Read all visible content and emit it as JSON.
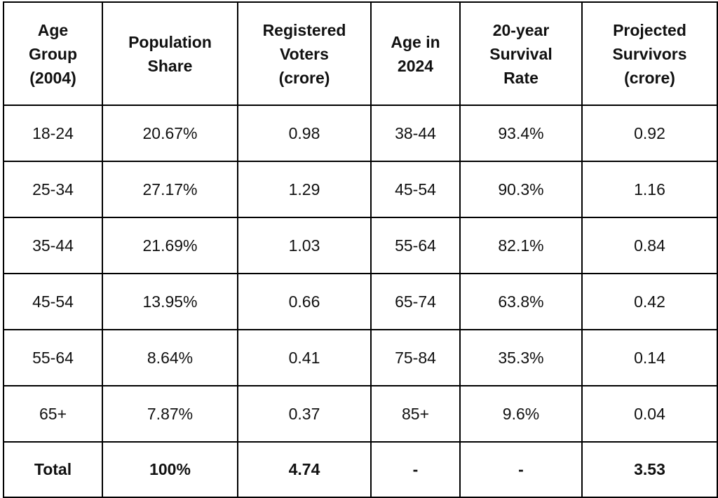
{
  "table": {
    "headers": [
      [
        "Age",
        "Group",
        "(2004)"
      ],
      [
        "Population",
        "Share"
      ],
      [
        "Registered",
        "Voters",
        "(crore)"
      ],
      [
        "Age in",
        "2024"
      ],
      [
        "20-year",
        "Survival",
        "Rate"
      ],
      [
        "Projected",
        "Survivors",
        "(crore)"
      ]
    ],
    "rows": [
      [
        "18-24",
        "20.67%",
        "0.98",
        "38-44",
        "93.4%",
        "0.92"
      ],
      [
        "25-34",
        "27.17%",
        "1.29",
        "45-54",
        "90.3%",
        "1.16"
      ],
      [
        "35-44",
        "21.69%",
        "1.03",
        "55-64",
        "82.1%",
        "0.84"
      ],
      [
        "45-54",
        "13.95%",
        "0.66",
        "65-74",
        "63.8%",
        "0.42"
      ],
      [
        "55-64",
        "8.64%",
        "0.41",
        "75-84",
        "35.3%",
        "0.14"
      ],
      [
        "65+",
        "7.87%",
        "0.37",
        "85+",
        "9.6%",
        "0.04"
      ]
    ],
    "total": [
      "Total",
      "100%",
      "4.74",
      "-",
      "-",
      "3.53"
    ]
  },
  "chart_data": {
    "type": "table",
    "columns": [
      "Age Group (2004)",
      "Population Share",
      "Registered Voters (crore)",
      "Age in 2024",
      "20-year Survival Rate",
      "Projected Survivors (crore)"
    ],
    "rows": [
      [
        "18-24",
        "20.67%",
        0.98,
        "38-44",
        "93.4%",
        0.92
      ],
      [
        "25-34",
        "27.17%",
        1.29,
        "45-54",
        "90.3%",
        1.16
      ],
      [
        "35-44",
        "21.69%",
        1.03,
        "55-64",
        "82.1%",
        0.84
      ],
      [
        "45-54",
        "13.95%",
        0.66,
        "65-74",
        "63.8%",
        0.42
      ],
      [
        "55-64",
        "8.64%",
        0.41,
        "75-84",
        "35.3%",
        0.14
      ],
      [
        "65+",
        "7.87%",
        0.37,
        "85+",
        "9.6%",
        0.04
      ]
    ],
    "total": [
      "Total",
      "100%",
      4.74,
      "-",
      "-",
      3.53
    ]
  }
}
